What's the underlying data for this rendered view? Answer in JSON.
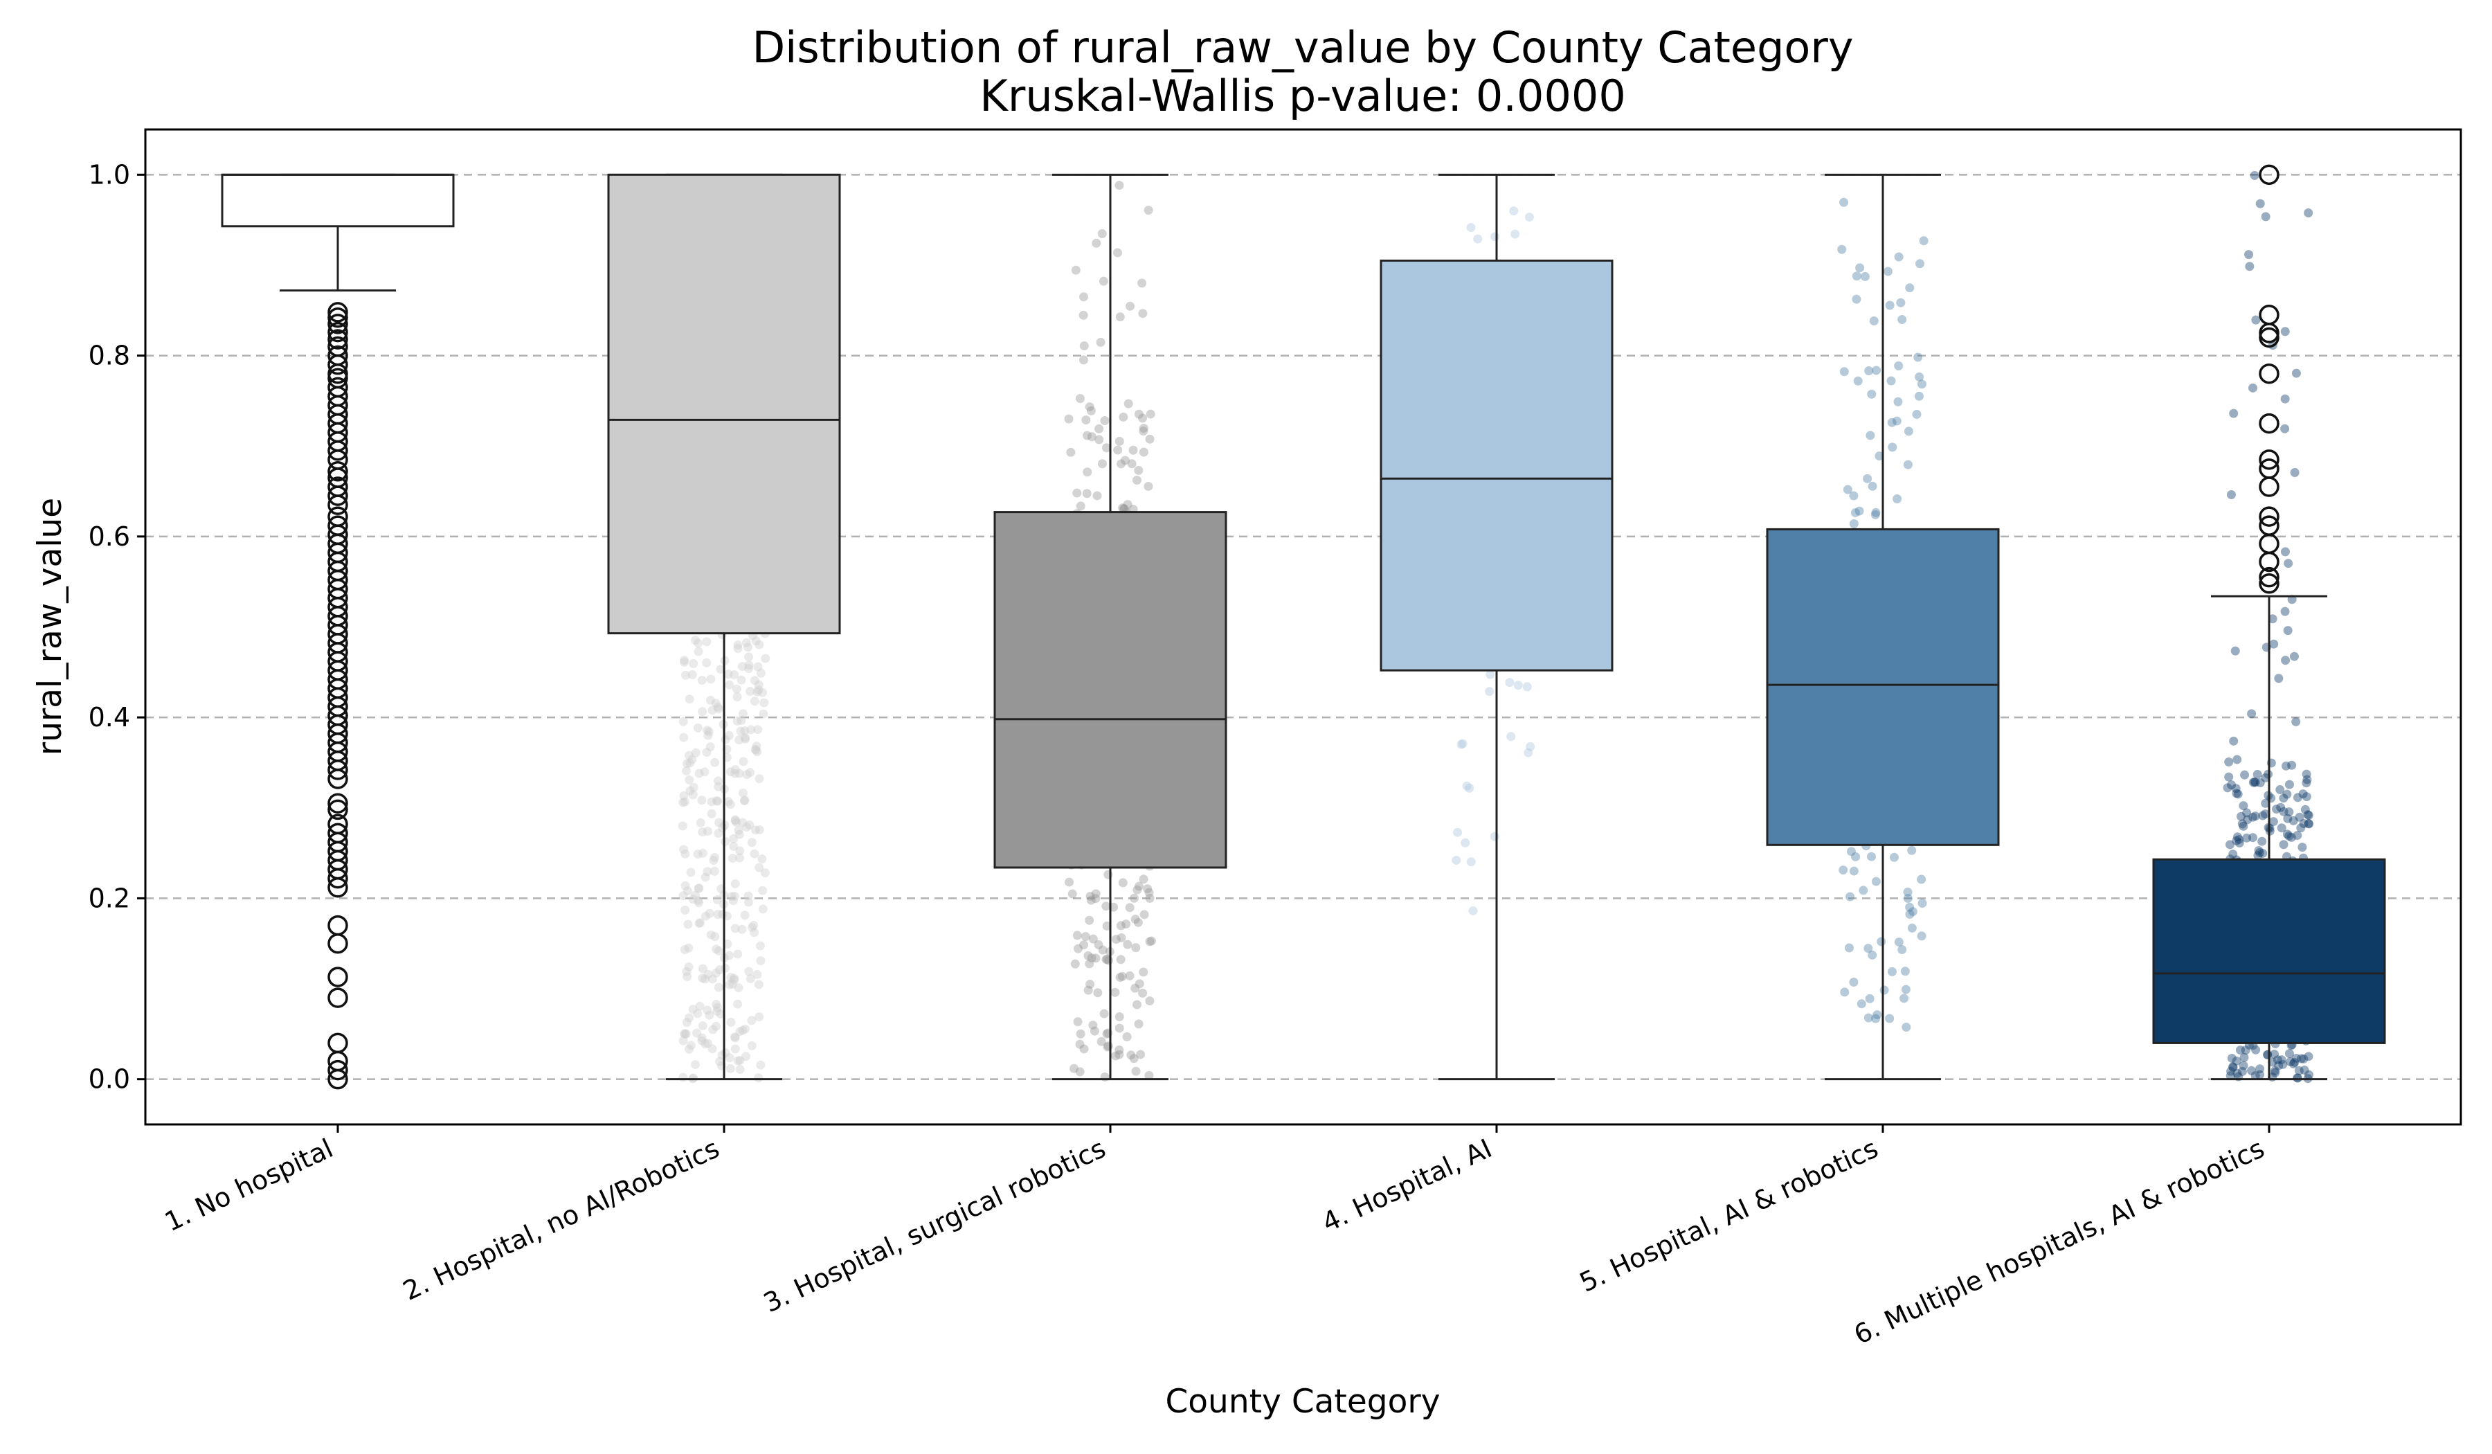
{
  "chart_data": {
    "type": "box",
    "title": "Distribution of rural_raw_value by County Category",
    "subtitle": "Kruskal-Wallis p-value: 0.0000",
    "xlabel": "County Category",
    "ylabel": "rural_raw_value",
    "ylim": [
      -0.05,
      1.05
    ],
    "yticks": [
      0.0,
      0.2,
      0.4,
      0.6,
      0.8,
      1.0
    ],
    "ytick_labels": [
      "0.0",
      "0.2",
      "0.4",
      "0.6",
      "0.8",
      "1.0"
    ],
    "grid": "horizontal dashed",
    "categories": [
      "1. No hospital",
      "2. Hospital, no AI/Robotics",
      "3. Hospital, surgical robotics",
      "4. Hospital, AI",
      "5. Hospital, AI & robotics",
      "6. Multiple hospitals, AI & robotics"
    ],
    "colors": [
      "#ffffff",
      "#cccccc",
      "#969696",
      "#abc6df",
      "#5080a8",
      "#0e3a66"
    ],
    "boxes": [
      {
        "category": "1. No hospital",
        "whisker_low": 0.872,
        "q1": 0.943,
        "median": 1.0,
        "q3": 1.0,
        "whisker_high": 1.0,
        "outliers": [
          0.848,
          0.842,
          0.835,
          0.826,
          0.818,
          0.81,
          0.8,
          0.79,
          0.78,
          0.775,
          0.765,
          0.755,
          0.745,
          0.735,
          0.725,
          0.715,
          0.705,
          0.695,
          0.685,
          0.672,
          0.665,
          0.655,
          0.645,
          0.635,
          0.622,
          0.612,
          0.602,
          0.592,
          0.582,
          0.572,
          0.562,
          0.552,
          0.542,
          0.532,
          0.522,
          0.512,
          0.502,
          0.492,
          0.482,
          0.472,
          0.462,
          0.452,
          0.442,
          0.432,
          0.422,
          0.412,
          0.402,
          0.392,
          0.382,
          0.372,
          0.362,
          0.352,
          0.342,
          0.332,
          0.305,
          0.298,
          0.282,
          0.272,
          0.262,
          0.252,
          0.242,
          0.232,
          0.222,
          0.212,
          0.17,
          0.15,
          0.113,
          0.09,
          0.04,
          0.02,
          0.01,
          0.0
        ]
      },
      {
        "category": "2. Hospital, no AI/Robotics",
        "whisker_low": 0.0,
        "q1": 0.493,
        "median": 0.729,
        "q3": 1.0,
        "whisker_high": 1.0,
        "outliers": []
      },
      {
        "category": "3. Hospital, surgical robotics",
        "whisker_low": 0.0,
        "q1": 0.234,
        "median": 0.398,
        "q3": 0.627,
        "whisker_high": 1.0,
        "outliers": []
      },
      {
        "category": "4. Hospital, AI",
        "whisker_low": 0.0,
        "q1": 0.452,
        "median": 0.664,
        "q3": 0.905,
        "whisker_high": 1.0,
        "outliers": []
      },
      {
        "category": "5. Hospital, AI & robotics",
        "whisker_low": 0.0,
        "q1": 0.259,
        "median": 0.436,
        "q3": 0.608,
        "whisker_high": 1.0,
        "outliers": []
      },
      {
        "category": "6. Multiple hospitals, AI & robotics",
        "whisker_low": 0.0,
        "q1": 0.04,
        "median": 0.117,
        "q3": 0.243,
        "whisker_high": 0.534,
        "outliers": [
          1.0,
          0.845,
          0.825,
          0.82,
          0.78,
          0.725,
          0.685,
          0.675,
          0.655,
          0.622,
          0.612,
          0.592,
          0.572,
          0.555,
          0.548
        ]
      }
    ],
    "strip_points": [
      {
        "category": "2. Hospital, no AI/Robotics",
        "n": 320,
        "lo": 0.0,
        "hi": 1.0,
        "dense_lo": 0.0,
        "dense_hi": 0.5
      },
      {
        "category": "3. Hospital, surgical robotics",
        "n": 300,
        "lo": 0.0,
        "hi": 1.0,
        "dense_lo": 0.0,
        "dense_hi": 0.75
      },
      {
        "category": "4. Hospital, AI",
        "n": 45,
        "lo": 0.12,
        "hi": 1.0,
        "dense_lo": 0.2,
        "dense_hi": 1.0
      },
      {
        "category": "5. Hospital, AI & robotics",
        "n": 140,
        "lo": 0.0,
        "hi": 1.0,
        "dense_lo": 0.05,
        "dense_hi": 0.9
      },
      {
        "category": "6. Multiple hospitals, AI & robotics",
        "n": 320,
        "lo": 0.0,
        "hi": 1.0,
        "dense_lo": 0.0,
        "dense_hi": 0.35
      }
    ]
  }
}
